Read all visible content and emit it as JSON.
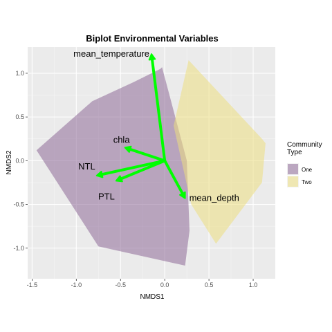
{
  "chart_data": {
    "type": "scatter",
    "title": "Biplot Environmental Variables",
    "xlabel": "NMDS1",
    "ylabel": "NMDS2",
    "xlim": [
      -1.55,
      1.25
    ],
    "ylim": [
      -1.35,
      1.3
    ],
    "xticks": [
      -1.5,
      -1.0,
      -0.5,
      0.0,
      0.5,
      1.0
    ],
    "xtick_labels": [
      "-1.5",
      "-1.0",
      "-0.5",
      "0.0",
      "0.5",
      "1.0"
    ],
    "yticks": [
      -1.0,
      -0.5,
      0.0,
      0.5,
      1.0
    ],
    "ytick_labels": [
      "-1.0",
      "-0.5",
      "0.0",
      "0.5",
      "1.0"
    ],
    "grid": true,
    "legend": {
      "title": "Community Type",
      "title_lines": [
        "Community",
        "Type"
      ],
      "placement": "right",
      "entries": [
        {
          "name": "One",
          "color": "#8e6a97"
        },
        {
          "name": "Two",
          "color": "#ecdf80"
        }
      ]
    },
    "hulls": [
      {
        "name": "One",
        "color": "#8e6a97",
        "points": [
          [
            -1.45,
            0.12
          ],
          [
            -0.82,
            0.68
          ],
          [
            -0.35,
            0.9
          ],
          [
            -0.05,
            1.05
          ],
          [
            -0.03,
            1.07
          ],
          [
            0.25,
            0.0
          ],
          [
            0.28,
            -0.8
          ],
          [
            0.23,
            -1.2
          ],
          [
            -0.75,
            -0.98
          ]
        ]
      },
      {
        "name": "Two",
        "color": "#ecdf80",
        "points": [
          [
            0.27,
            1.15
          ],
          [
            1.1,
            0.25
          ],
          [
            1.14,
            0.2
          ],
          [
            1.1,
            -0.25
          ],
          [
            0.58,
            -0.95
          ],
          [
            0.3,
            -0.5
          ],
          [
            0.1,
            0.4
          ]
        ]
      }
    ],
    "arrows": [
      {
        "label": "mean_temperature",
        "x": -0.15,
        "y": 1.22
      },
      {
        "label": "chla",
        "x": -0.45,
        "y": 0.15
      },
      {
        "label": "NTL",
        "x": -0.77,
        "y": -0.17
      },
      {
        "label": "PTL",
        "x": -0.55,
        "y": -0.23
      },
      {
        "label": "mean_depth",
        "x": 0.23,
        "y": -0.43
      }
    ],
    "arrow_origin": [
      0.0,
      0.0
    ],
    "arrow_color": "#00ff00"
  }
}
